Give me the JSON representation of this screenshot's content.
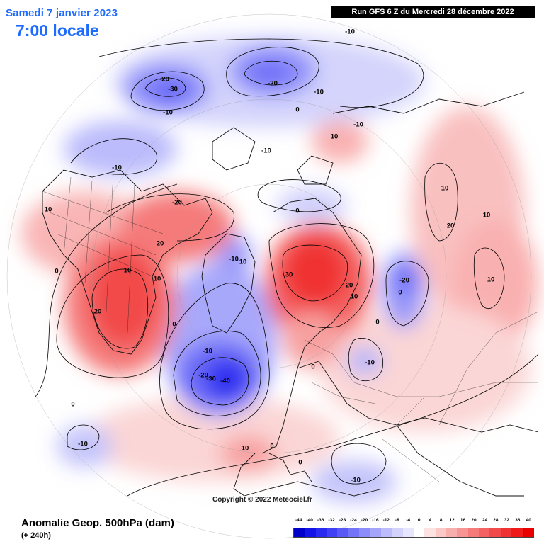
{
  "header": {
    "valid_date": "Samedi 7 janvier 2023",
    "valid_time": "7:00 locale",
    "run_info": "Run GFS 6 Z du Mercredi 28 décembre 2022"
  },
  "footer": {
    "field_title": "Anomalie Geop. 500hPa (dam)",
    "lead_time": "(+ 240h)",
    "copyright": "Copyright © 2022 Meteociel.fr"
  },
  "legend": {
    "labels": [
      "-44",
      "-40",
      "-36",
      "-32",
      "-28",
      "-24",
      "-20",
      "-16",
      "-12",
      "-8",
      "-4",
      "0",
      "4",
      "8",
      "12",
      "16",
      "20",
      "24",
      "28",
      "32",
      "36",
      "40"
    ],
    "colors": [
      "#0000c8",
      "#1414e6",
      "#2a2af0",
      "#4040f5",
      "#5a5af7",
      "#7474f8",
      "#8c8cfa",
      "#a4a4fb",
      "#bcbcfc",
      "#d2d2fd",
      "#e6e6fe",
      "#ffffff",
      "#fde2e2",
      "#fbc8c8",
      "#f9aeae",
      "#f79494",
      "#f57a7a",
      "#f46262",
      "#f24a4a",
      "#f03232",
      "#ee1a1a",
      "#e80000"
    ]
  },
  "map": {
    "colors": {
      "positive": "#e80000",
      "negative": "#0000c8",
      "coast": "#111111",
      "contour": "#000000"
    },
    "contour_labels": [
      {
        "text": "-20"
      },
      {
        "text": "-30"
      },
      {
        "text": "-10"
      },
      {
        "text": "-20"
      },
      {
        "text": "-10"
      },
      {
        "text": "-10"
      },
      {
        "text": "-10"
      },
      {
        "text": "-10"
      },
      {
        "text": "0"
      },
      {
        "text": "-10"
      },
      {
        "text": "0"
      },
      {
        "text": "10"
      },
      {
        "text": "10"
      },
      {
        "text": "-20"
      },
      {
        "text": "0"
      },
      {
        "text": "20"
      },
      {
        "text": "10"
      },
      {
        "text": "10"
      },
      {
        "text": "10"
      },
      {
        "text": "0"
      },
      {
        "text": "20"
      },
      {
        "text": "0"
      },
      {
        "text": "-10"
      },
      {
        "text": "30"
      },
      {
        "text": "20"
      },
      {
        "text": "10"
      },
      {
        "text": "-20"
      },
      {
        "text": "10"
      },
      {
        "text": "20"
      },
      {
        "text": "10"
      },
      {
        "text": "0"
      },
      {
        "text": "-10"
      },
      {
        "text": "-20"
      },
      {
        "text": "-30"
      },
      {
        "text": "-40"
      },
      {
        "text": "0"
      },
      {
        "text": "-10"
      },
      {
        "text": "-10"
      },
      {
        "text": "0"
      },
      {
        "text": "10"
      },
      {
        "text": "0"
      },
      {
        "text": "-10"
      },
      {
        "text": "10"
      },
      {
        "text": "0"
      }
    ]
  }
}
